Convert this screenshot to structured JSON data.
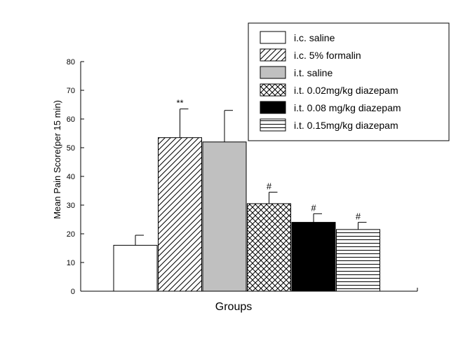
{
  "chart_data": {
    "type": "bar",
    "xlabel": "Groups",
    "ylabel": "Mean Pain Score(per 15 min)",
    "ylim": [
      0,
      80
    ],
    "yticks": [
      "0",
      "10",
      "20",
      "30",
      "40",
      "50",
      "60",
      "70",
      "80"
    ],
    "grid": false,
    "legend_position": "top-right",
    "series": [
      {
        "name": "i.c. saline",
        "value": 16,
        "error": 3.5,
        "annotation": "",
        "fill": "white"
      },
      {
        "name": "i.c. 5% formalin",
        "value": 53.5,
        "error": 10,
        "annotation": "**",
        "fill": "diagonal-hatch"
      },
      {
        "name": "i.t. saline",
        "value": 52,
        "error": 11,
        "annotation": "",
        "fill": "gray"
      },
      {
        "name": "i.t. 0.02mg/kg diazepam",
        "value": 30.5,
        "error": 4,
        "annotation": "#",
        "fill": "crosshatch"
      },
      {
        "name": "i.t. 0.08 mg/kg diazepam",
        "value": 24,
        "error": 3,
        "annotation": "#",
        "fill": "black"
      },
      {
        "name": "i.t. 0.15mg/kg diazepam",
        "value": 21.5,
        "error": 2.5,
        "annotation": "#",
        "fill": "horizontal-lines"
      }
    ],
    "colors": {
      "gray": "#c0c0c0",
      "black": "#000000",
      "white": "#ffffff"
    }
  }
}
